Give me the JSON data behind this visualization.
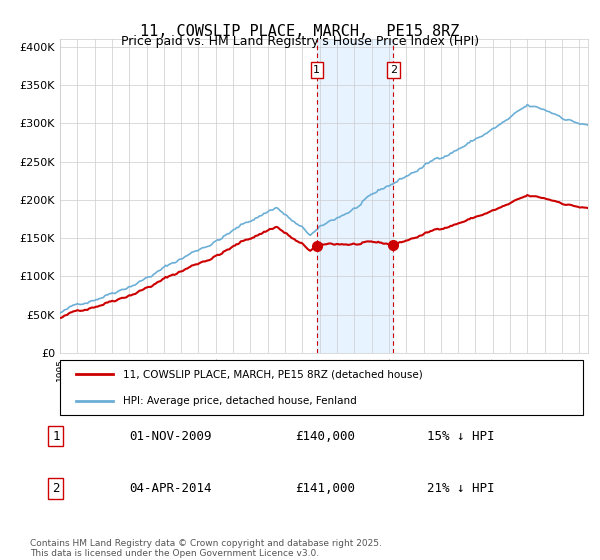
{
  "title": "11, COWSLIP PLACE, MARCH,  PE15 8RZ",
  "subtitle": "Price paid vs. HM Land Registry's House Price Index (HPI)",
  "xlim": [
    1995,
    2025.5
  ],
  "ylim": [
    0,
    410000
  ],
  "yticks": [
    0,
    50000,
    100000,
    150000,
    200000,
    250000,
    300000,
    350000,
    400000
  ],
  "ytick_labels": [
    "£0",
    "£50K",
    "£100K",
    "£150K",
    "£200K",
    "£250K",
    "£300K",
    "£350K",
    "£400K"
  ],
  "hpi_color": "#6baed6",
  "price_color": "#cc0000",
  "vline_color": "#cc0000",
  "shade_color": "#ddeeff",
  "purchase1_date": 2009.833,
  "purchase1_price": 140000,
  "purchase2_date": 2014.25,
  "purchase2_price": 141000,
  "purchase1_label": "1",
  "purchase2_label": "2",
  "legend_entries": [
    "11, COWSLIP PLACE, MARCH, PE15 8RZ (detached house)",
    "HPI: Average price, detached house, Fenland"
  ],
  "table_rows": [
    [
      "1",
      "01-NOV-2009",
      "£140,000",
      "15% ↓ HPI"
    ],
    [
      "2",
      "04-APR-2014",
      "£141,000",
      "21% ↓ HPI"
    ]
  ],
  "footnote": "Contains HM Land Registry data © Crown copyright and database right 2025.\nThis data is licensed under the Open Government Licence v3.0.",
  "background_color": "#ffffff",
  "grid_color": "#cccccc",
  "title_fontsize": 11,
  "subtitle_fontsize": 9,
  "axis_fontsize": 8
}
